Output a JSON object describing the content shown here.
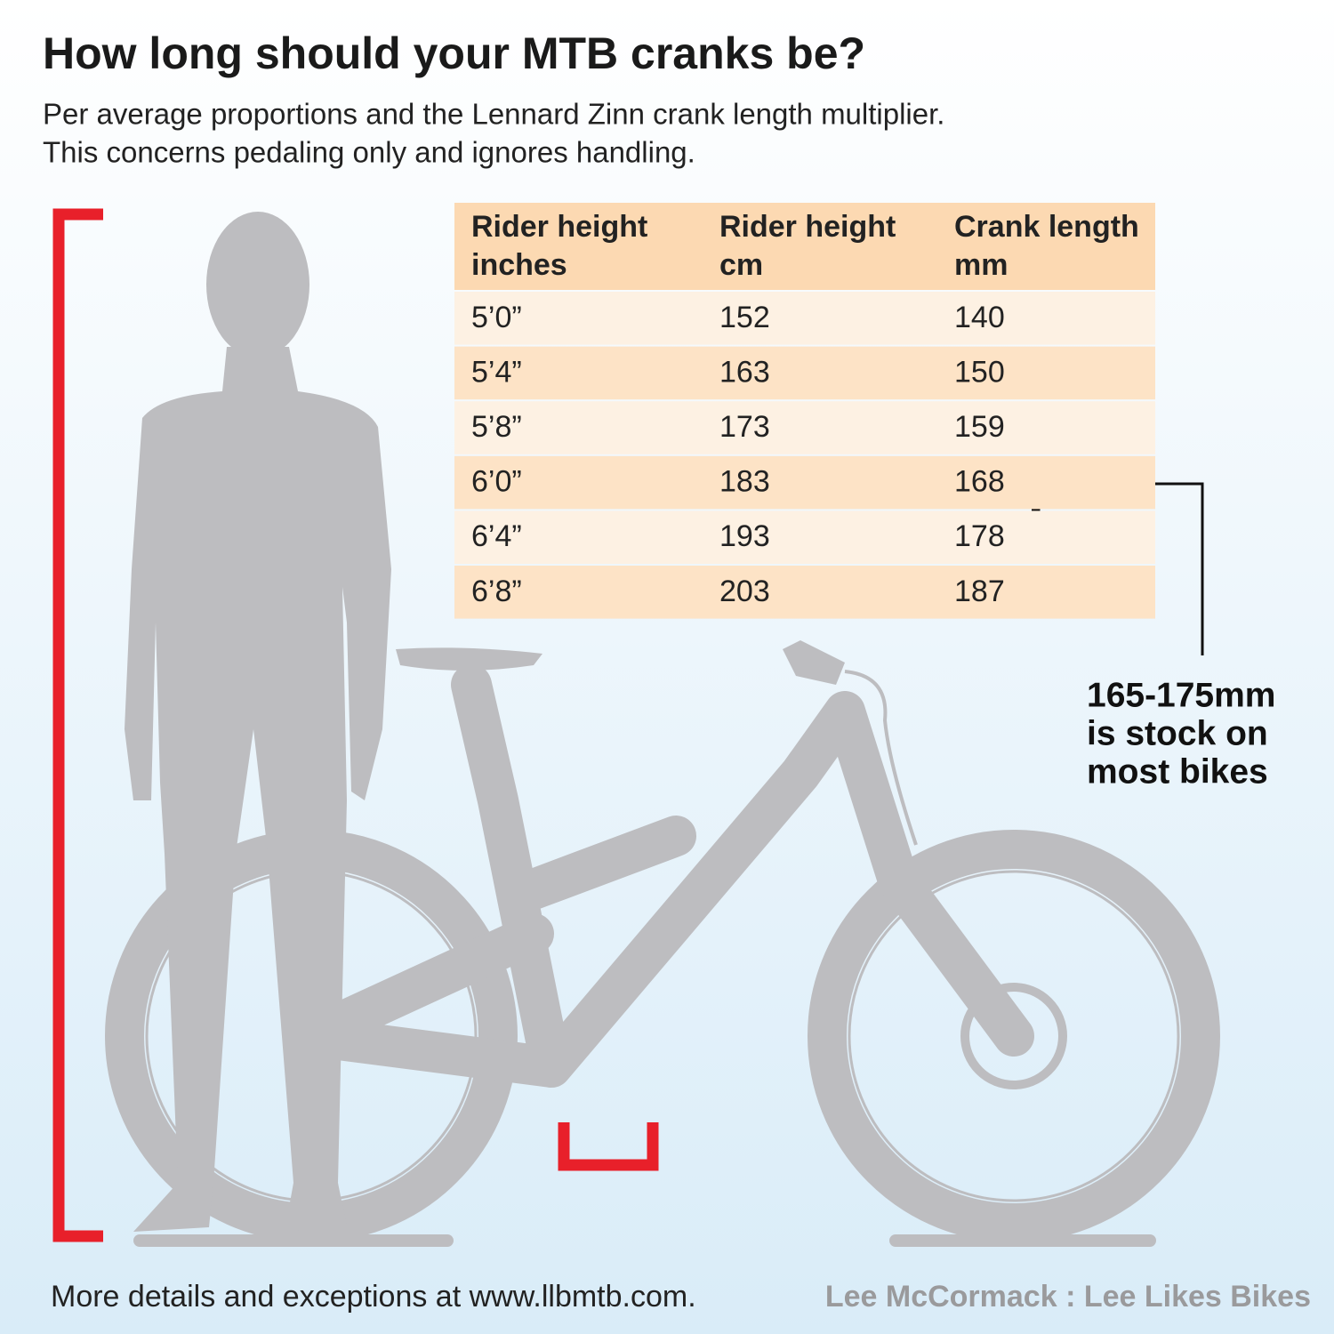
{
  "header": {
    "title": "How long should your MTB cranks be?",
    "subtitle": [
      "Per average proportions and the Lennard Zinn crank length multiplier.",
      "This concerns pedaling only and ignores handling."
    ]
  },
  "table": {
    "header": [
      [
        "Rider height",
        "inches"
      ],
      [
        "Rider height",
        "cm"
      ],
      [
        "Crank length",
        "mm"
      ]
    ],
    "rows": [
      [
        "5’0”",
        152,
        140
      ],
      [
        "5’4”",
        163,
        150
      ],
      [
        "5’8”",
        173,
        159
      ],
      [
        "6’0”",
        183,
        168
      ],
      [
        "6’4”",
        193,
        178
      ],
      [
        "6’8”",
        203,
        187
      ]
    ]
  },
  "annotation": [
    "165-175mm",
    "is stock on",
    "most bikes"
  ],
  "footer": {
    "left": "More details and exceptions at www.llbmtb.com.",
    "right": "Lee McCormack : Lee Likes Bikes"
  }
}
